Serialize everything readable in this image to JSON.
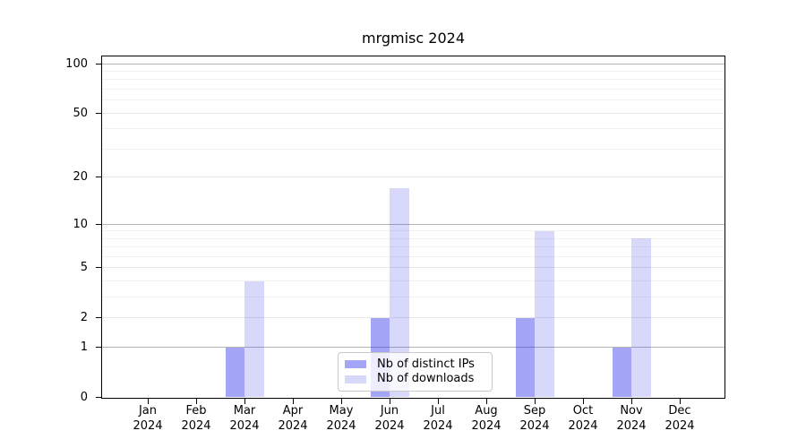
{
  "chart_data": {
    "type": "bar",
    "title": "mrgmisc 2024",
    "categories": [
      "Jan",
      "Feb",
      "Mar",
      "Apr",
      "May",
      "Jun",
      "Jul",
      "Aug",
      "Sep",
      "Oct",
      "Nov",
      "Dec"
    ],
    "x_tick_second_line": "2024",
    "series": [
      {
        "name": "Nb of distinct IPs",
        "color": "rgba(40,40,235,0.42)",
        "values": [
          0,
          0,
          1,
          0,
          0,
          2,
          0,
          0,
          2,
          0,
          1,
          0
        ]
      },
      {
        "name": "Nb of downloads",
        "color": "rgba(40,40,235,0.18)",
        "values": [
          0,
          0,
          4,
          0,
          0,
          17,
          0,
          0,
          9,
          0,
          8,
          0
        ]
      }
    ],
    "y_scale": "log1p",
    "y_ticks": [
      0,
      1,
      2,
      5,
      10,
      20,
      50,
      100
    ],
    "y_minor_gridlines": [
      3,
      4,
      6,
      7,
      8,
      9,
      30,
      40,
      60,
      70,
      80,
      90
    ],
    "ylim": [
      0,
      112
    ],
    "grid": "horizontal",
    "legend_position": "lower-center-inside"
  },
  "colors": {
    "grid_decade": "#b4b4b4",
    "grid_major": "#e8e8e8",
    "grid_minor": "#f2f2f2",
    "axis": "#000000",
    "legend_border": "#c9c9c9",
    "background": "#ffffff",
    "text": "#000000"
  }
}
